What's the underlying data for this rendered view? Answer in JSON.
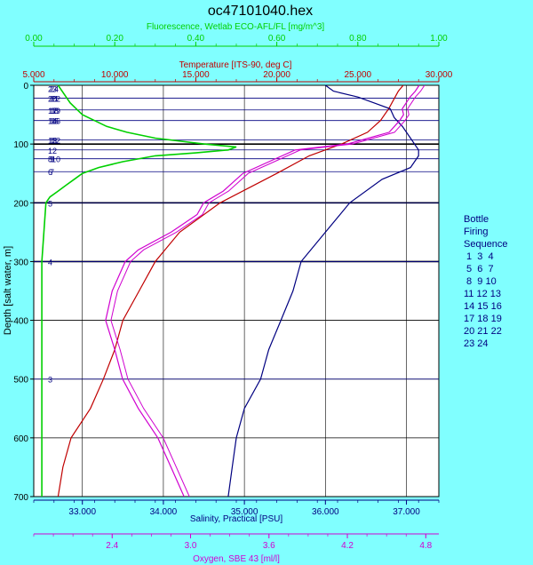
{
  "title": "oc47101040.hex",
  "colors": {
    "background": "#80FFFF",
    "plot_background": "#FFFFFF",
    "fluorescence": "#00D000",
    "temperature": "#C00000",
    "salinity": "#000080",
    "oxygen": "#D000D0",
    "axis": "#000000"
  },
  "bottle_legend": {
    "lines": [
      "Bottle",
      "Firing",
      "Sequence",
      " 1  3  4",
      " 5  6  7",
      " 8  9 10",
      "11 12 13",
      "14 15 16",
      "17 18 19",
      "20 21 22",
      "23 24"
    ]
  },
  "chart_data": {
    "type": "line",
    "title": "oc47101040.hex",
    "y_axis": {
      "label": "Depth [salt water, m]",
      "range": [
        0,
        700
      ],
      "ticks": [
        0,
        100,
        200,
        300,
        400,
        500,
        600,
        700
      ],
      "inverted": true
    },
    "x_axes": [
      {
        "id": "fluorescence",
        "label": "Fluorescence, Wetlab ECO-AFL/FL [mg/m^3]",
        "position": "top-outer",
        "range": [
          0,
          1
        ],
        "ticks": [
          "0.00",
          "0.20",
          "0.40",
          "0.60",
          "0.80",
          "1.00"
        ]
      },
      {
        "id": "temperature",
        "label": "Temperature [ITS-90, deg C]",
        "position": "top-inner",
        "range": [
          5,
          30
        ],
        "ticks": [
          "5.000",
          "10.000",
          "15.000",
          "20.000",
          "25.000",
          "30.000"
        ]
      },
      {
        "id": "salinity",
        "label": "Salinity, Practical [PSU]",
        "position": "bottom-inner",
        "range": [
          32.4,
          37.4
        ],
        "ticks": [
          "33.000",
          "34.000",
          "35.000",
          "36.000",
          "37.000"
        ]
      },
      {
        "id": "oxygen",
        "label": "Oxygen, SBE 43 [ml/l]",
        "position": "bottom-outer",
        "range": [
          1.8,
          4.9
        ],
        "ticks": [
          "2.4",
          "3.0",
          "3.6",
          "4.2",
          "4.8"
        ]
      }
    ],
    "grid": true,
    "bottle_stops": [
      {
        "labels": [
          "23",
          "24"
        ],
        "depth": 5
      },
      {
        "labels": [
          "20",
          "21",
          "22"
        ],
        "depth": 22
      },
      {
        "labels": [
          "17",
          "18",
          "19"
        ],
        "depth": 42
      },
      {
        "labels": [
          "14",
          "15",
          "16"
        ],
        "depth": 60
      },
      {
        "labels": [
          "13",
          "11",
          "12"
        ],
        "depth": 93
      },
      {
        "labels": [
          "12"
        ],
        "depth": 110
      },
      {
        "labels": [
          "8",
          "9",
          "10"
        ],
        "depth": 125
      },
      {
        "labels": [
          "6",
          "7"
        ],
        "depth": 147
      },
      {
        "labels": [
          "5"
        ],
        "depth": 200
      },
      {
        "labels": [
          "4"
        ],
        "depth": 300
      },
      {
        "labels": [
          "3"
        ],
        "depth": 500
      }
    ],
    "series": [
      {
        "axis": "temperature",
        "depth": [
          0,
          10,
          20,
          40,
          60,
          80,
          100,
          120,
          150,
          200,
          250,
          300,
          350,
          400,
          450,
          500,
          550,
          600,
          650,
          700
        ],
        "values": [
          27.8,
          27.5,
          27.3,
          26.9,
          26.4,
          25.6,
          24.0,
          22.0,
          20.0,
          16.5,
          14.0,
          12.5,
          11.5,
          10.5,
          10.0,
          9.3,
          8.5,
          7.3,
          6.8,
          6.5
        ]
      },
      {
        "axis": "salinity",
        "depth": [
          0,
          10,
          20,
          30,
          40,
          55,
          70,
          90,
          110,
          120,
          140,
          160,
          200,
          250,
          300,
          350,
          400,
          450,
          500,
          550,
          600,
          650,
          700
        ],
        "values": [
          36.0,
          36.1,
          36.4,
          36.6,
          36.8,
          36.85,
          36.95,
          37.05,
          37.15,
          37.15,
          37.05,
          36.7,
          36.3,
          36.0,
          35.7,
          35.6,
          35.45,
          35.3,
          35.2,
          35.0,
          34.9,
          34.85,
          34.8
        ]
      },
      {
        "axis": "oxygen",
        "depth": [
          0,
          10,
          20,
          40,
          50,
          60,
          80,
          100,
          110,
          130,
          150,
          180,
          200,
          220,
          250,
          280,
          300,
          350,
          400,
          450,
          500,
          550,
          600,
          650,
          700
        ],
        "values": [
          4.75,
          4.72,
          4.68,
          4.62,
          4.63,
          4.6,
          4.52,
          4.2,
          3.8,
          3.6,
          3.4,
          3.25,
          3.1,
          3.05,
          2.85,
          2.6,
          2.5,
          2.4,
          2.35,
          2.42,
          2.48,
          2.6,
          2.75,
          2.85,
          2.95
        ]
      },
      {
        "axis": "fluorescence",
        "depth": [
          0,
          10,
          30,
          50,
          70,
          80,
          90,
          100,
          105,
          110,
          115,
          120,
          130,
          140,
          150,
          160,
          170,
          180,
          190,
          200,
          250,
          300,
          400,
          500,
          600,
          700
        ],
        "values": [
          0.06,
          0.07,
          0.09,
          0.12,
          0.18,
          0.23,
          0.3,
          0.42,
          0.5,
          0.48,
          0.4,
          0.3,
          0.22,
          0.16,
          0.12,
          0.1,
          0.08,
          0.06,
          0.04,
          0.03,
          0.025,
          0.02,
          0.02,
          0.02,
          0.02,
          0.02
        ]
      }
    ]
  }
}
